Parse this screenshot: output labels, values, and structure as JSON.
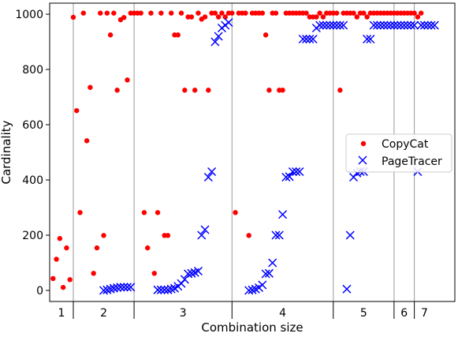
{
  "chart_data": {
    "type": "scatter",
    "xlabel": "Combination size",
    "ylabel": "Cardinality",
    "ylim": [
      -40,
      1040
    ],
    "xlim": [
      0,
      120
    ],
    "y_ticks": [
      0,
      200,
      400,
      600,
      800,
      1000
    ],
    "groups": [
      {
        "label": "1",
        "start": 0,
        "end": 7
      },
      {
        "label": "2",
        "start": 7,
        "end": 25
      },
      {
        "label": "3",
        "start": 25,
        "end": 54
      },
      {
        "label": "4",
        "start": 54,
        "end": 84
      },
      {
        "label": "5",
        "start": 84,
        "end": 102
      },
      {
        "label": "6",
        "start": 102,
        "end": 108
      },
      {
        "label": "7",
        "start": 108,
        "end": 114
      }
    ],
    "legend_position": "right",
    "series": [
      {
        "name": "CopyCat",
        "color": "#ff0000",
        "marker": "dot",
        "points": [
          [
            1,
            43
          ],
          [
            2,
            113
          ],
          [
            3,
            188
          ],
          [
            4,
            11
          ],
          [
            5,
            154
          ],
          [
            6,
            39
          ],
          [
            7,
            989
          ],
          [
            8,
            651
          ],
          [
            9,
            282
          ],
          [
            10,
            1004
          ],
          [
            11,
            542
          ],
          [
            12,
            735
          ],
          [
            13,
            62
          ],
          [
            14,
            154
          ],
          [
            15,
            1004
          ],
          [
            16,
            199
          ],
          [
            17,
            1004
          ],
          [
            18,
            925
          ],
          [
            19,
            1004
          ],
          [
            20,
            725
          ],
          [
            21,
            980
          ],
          [
            22,
            988
          ],
          [
            23,
            762
          ],
          [
            24,
            1004
          ],
          [
            25,
            1004
          ],
          [
            26,
            1004
          ],
          [
            27,
            1004
          ],
          [
            28,
            282
          ],
          [
            29,
            154
          ],
          [
            30,
            1004
          ],
          [
            31,
            62
          ],
          [
            32,
            282
          ],
          [
            33,
            1004
          ],
          [
            34,
            199
          ],
          [
            35,
            199
          ],
          [
            36,
            1004
          ],
          [
            37,
            925
          ],
          [
            38,
            925
          ],
          [
            39,
            1004
          ],
          [
            40,
            725
          ],
          [
            41,
            990
          ],
          [
            42,
            990
          ],
          [
            43,
            725
          ],
          [
            44,
            1004
          ],
          [
            45,
            982
          ],
          [
            46,
            990
          ],
          [
            47,
            725
          ],
          [
            48,
            1004
          ],
          [
            49,
            1004
          ],
          [
            50,
            990
          ],
          [
            51,
            1004
          ],
          [
            52,
            990
          ],
          [
            53,
            1004
          ],
          [
            54,
            1004
          ],
          [
            55,
            282
          ],
          [
            56,
            1004
          ],
          [
            57,
            1004
          ],
          [
            58,
            1004
          ],
          [
            59,
            199
          ],
          [
            60,
            1004
          ],
          [
            61,
            1004
          ],
          [
            62,
            1004
          ],
          [
            63,
            1004
          ],
          [
            64,
            925
          ],
          [
            65,
            725
          ],
          [
            66,
            1004
          ],
          [
            67,
            1004
          ],
          [
            68,
            725
          ],
          [
            69,
            725
          ],
          [
            70,
            1004
          ],
          [
            71,
            1004
          ],
          [
            72,
            1004
          ],
          [
            73,
            1004
          ],
          [
            74,
            1004
          ],
          [
            75,
            1004
          ],
          [
            76,
            1004
          ],
          [
            77,
            990
          ],
          [
            78,
            990
          ],
          [
            79,
            990
          ],
          [
            80,
            1004
          ],
          [
            81,
            990
          ],
          [
            82,
            1004
          ],
          [
            83,
            1004
          ],
          [
            84,
            1004
          ],
          [
            85,
            1004
          ],
          [
            86,
            725
          ],
          [
            87,
            1004
          ],
          [
            88,
            1004
          ],
          [
            89,
            1004
          ],
          [
            90,
            1004
          ],
          [
            91,
            990
          ],
          [
            92,
            1004
          ],
          [
            93,
            1004
          ],
          [
            94,
            990
          ],
          [
            95,
            1004
          ],
          [
            96,
            1004
          ],
          [
            97,
            1004
          ],
          [
            98,
            1004
          ],
          [
            99,
            1004
          ],
          [
            100,
            1004
          ],
          [
            101,
            1004
          ],
          [
            102,
            1004
          ],
          [
            103,
            1004
          ],
          [
            104,
            1004
          ],
          [
            105,
            1004
          ],
          [
            106,
            1004
          ],
          [
            107,
            1004
          ],
          [
            108,
            1004
          ],
          [
            109,
            990
          ],
          [
            110,
            1004
          ]
        ]
      },
      {
        "name": "PageTracer",
        "color": "#0000ff",
        "marker": "x",
        "points": [
          [
            16,
            0
          ],
          [
            17,
            2
          ],
          [
            18,
            5
          ],
          [
            19,
            8
          ],
          [
            20,
            10
          ],
          [
            21,
            12
          ],
          [
            22,
            12
          ],
          [
            23,
            12
          ],
          [
            24,
            12
          ],
          [
            32,
            2
          ],
          [
            33,
            2
          ],
          [
            34,
            2
          ],
          [
            35,
            2
          ],
          [
            36,
            5
          ],
          [
            37,
            8
          ],
          [
            38,
            15
          ],
          [
            39,
            25
          ],
          [
            40,
            40
          ],
          [
            41,
            60
          ],
          [
            42,
            62
          ],
          [
            43,
            65
          ],
          [
            44,
            70
          ],
          [
            45,
            200
          ],
          [
            46,
            220
          ],
          [
            47,
            410
          ],
          [
            48,
            430
          ],
          [
            49,
            900
          ],
          [
            50,
            920
          ],
          [
            51,
            950
          ],
          [
            52,
            960
          ],
          [
            53,
            970
          ],
          [
            59,
            0
          ],
          [
            60,
            2
          ],
          [
            61,
            5
          ],
          [
            62,
            10
          ],
          [
            63,
            20
          ],
          [
            64,
            60
          ],
          [
            65,
            62
          ],
          [
            66,
            100
          ],
          [
            67,
            200
          ],
          [
            68,
            200
          ],
          [
            69,
            275
          ],
          [
            70,
            410
          ],
          [
            71,
            412
          ],
          [
            72,
            430
          ],
          [
            73,
            430
          ],
          [
            74,
            430
          ],
          [
            75,
            910
          ],
          [
            76,
            910
          ],
          [
            77,
            910
          ],
          [
            78,
            910
          ],
          [
            79,
            950
          ],
          [
            80,
            960
          ],
          [
            81,
            960
          ],
          [
            82,
            960
          ],
          [
            83,
            960
          ],
          [
            84,
            960
          ],
          [
            85,
            960
          ],
          [
            86,
            960
          ],
          [
            87,
            960
          ],
          [
            88,
            5
          ],
          [
            89,
            200
          ],
          [
            90,
            410
          ],
          [
            91,
            425
          ],
          [
            92,
            430
          ],
          [
            93,
            430
          ],
          [
            94,
            910
          ],
          [
            95,
            910
          ],
          [
            96,
            960
          ],
          [
            97,
            960
          ],
          [
            98,
            960
          ],
          [
            99,
            960
          ],
          [
            100,
            960
          ],
          [
            101,
            960
          ],
          [
            102,
            960
          ],
          [
            103,
            960
          ],
          [
            104,
            960
          ],
          [
            105,
            960
          ],
          [
            106,
            960
          ],
          [
            107,
            960
          ],
          [
            108,
            960
          ],
          [
            109,
            430
          ],
          [
            110,
            960
          ],
          [
            111,
            960
          ],
          [
            112,
            960
          ],
          [
            113,
            960
          ],
          [
            114,
            960
          ]
        ]
      }
    ]
  }
}
